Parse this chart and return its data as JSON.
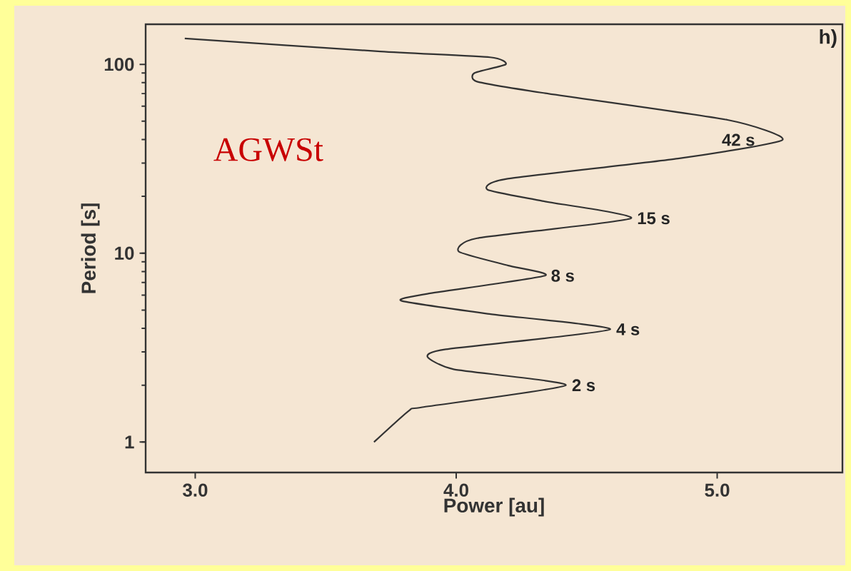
{
  "chart_data": {
    "type": "line",
    "xlabel": "Power [au]",
    "ylabel": "Period [s]",
    "log": "y",
    "grid": false,
    "marker": "none",
    "line_style": "solid",
    "xlim": [
      2.81,
      5.48
    ],
    "ylim": [
      0.69,
      163
    ],
    "xticks": [
      {
        "value": 3,
        "label": "3.0"
      },
      {
        "value": 4,
        "label": "4.0"
      },
      {
        "value": 5,
        "label": "5.0"
      }
    ],
    "yticks": [
      1,
      10,
      100
    ],
    "series": [
      {
        "color": "#333333",
        "x": [
          3.685,
          3.82,
          3.87,
          4.42,
          3.99,
          3.89,
          3.96,
          4.59,
          4.12,
          3.79,
          3.89,
          4.34,
          4.2,
          4.01,
          4.08,
          4.67,
          4.33,
          4.12,
          4.19,
          4.85,
          5.25,
          5.04,
          4.33,
          4.08,
          4.07,
          4.19,
          4.13,
          3.71,
          2.96
        ],
        "values": [
          1.0,
          1.47,
          1.53,
          2.0,
          2.43,
          2.83,
          3.1,
          3.95,
          4.78,
          5.6,
          6.1,
          7.6,
          8.6,
          10.2,
          12.0,
          15.3,
          18.9,
          21.7,
          24.7,
          31.7,
          39.8,
          50.8,
          70.7,
          81,
          90,
          100,
          109,
          117,
          137
        ]
      }
    ],
    "annotations": [
      {
        "text": "42 s",
        "x": 5.25,
        "y": 39.8
      },
      {
        "text": "15 s",
        "x": 4.67,
        "y": 15.3
      },
      {
        "text": "8 s",
        "x": 4.34,
        "y": 7.6
      },
      {
        "text": "4 s",
        "x": 4.59,
        "y": 3.95
      },
      {
        "text": "2 s",
        "x": 4.42,
        "y": 2.0
      },
      "h)",
      "AGWSt"
    ]
  }
}
